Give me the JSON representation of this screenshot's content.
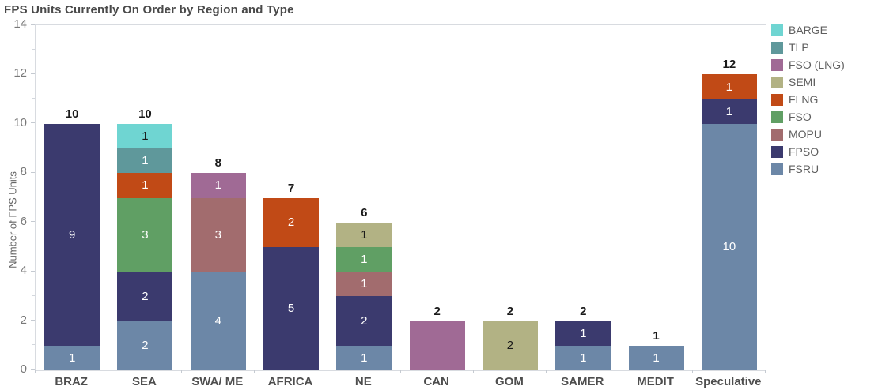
{
  "chart_data": {
    "type": "bar",
    "variant": "stacked-vertical",
    "title": "FPS Units Currently On Order by Region and Type",
    "xlabel": "",
    "ylabel": "Number of FPS Units",
    "ylim": [
      0,
      14
    ],
    "yticks_major": [
      0,
      2,
      4,
      6,
      8,
      10,
      12,
      14
    ],
    "yticks_minor": [
      1,
      3,
      5,
      7,
      9,
      11,
      13
    ],
    "grid": false,
    "legend_position": "right",
    "legend": [
      "BARGE",
      "TLP",
      "FSO (LNG)",
      "SEMI",
      "FLNG",
      "FSO",
      "MOPU",
      "FPSO",
      "FSRU"
    ],
    "colors": {
      "BARGE": "#6fd5d2",
      "TLP": "#5f989b",
      "FSO (LNG)": "#a06a95",
      "SEMI": "#b2b284",
      "FLNG": "#c14a16",
      "FSO": "#609f64",
      "MOPU": "#a26c6e",
      "FPSO": "#3b3a6e",
      "FSRU": "#6c87a7"
    },
    "label_colors": {
      "BARGE": "#1a1a1a",
      "TLP": "#ffffff",
      "FSO (LNG)": "#ffffff",
      "SEMI": "#1a1a1a",
      "FLNG": "#ffffff",
      "FSO": "#ffffff",
      "MOPU": "#ffffff",
      "FPSO": "#ffffff",
      "FSRU": "#ffffff"
    },
    "categories": [
      "BRAZ",
      "SEA",
      "SWA/ ME",
      "AFRICA",
      "NE",
      "CAN",
      "GOM",
      "SAMER",
      "MEDIT",
      "Speculative"
    ],
    "totals": [
      10,
      10,
      8,
      7,
      6,
      2,
      2,
      2,
      1,
      12
    ],
    "bars": [
      {
        "category": "BRAZ",
        "total": 10,
        "segments": [
          {
            "type": "FSRU",
            "value": 1,
            "show_label": true
          },
          {
            "type": "FPSO",
            "value": 9,
            "show_label": true
          }
        ]
      },
      {
        "category": "SEA",
        "total": 10,
        "segments": [
          {
            "type": "FSRU",
            "value": 2,
            "show_label": true
          },
          {
            "type": "FPSO",
            "value": 2,
            "show_label": true
          },
          {
            "type": "FSO",
            "value": 3,
            "show_label": true
          },
          {
            "type": "FLNG",
            "value": 1,
            "show_label": true
          },
          {
            "type": "TLP",
            "value": 1,
            "show_label": true
          },
          {
            "type": "BARGE",
            "value": 1,
            "show_label": true
          }
        ]
      },
      {
        "category": "SWA/ ME",
        "total": 8,
        "segments": [
          {
            "type": "FSRU",
            "value": 4,
            "show_label": true
          },
          {
            "type": "MOPU",
            "value": 3,
            "show_label": true
          },
          {
            "type": "FSO (LNG)",
            "value": 1,
            "show_label": true
          }
        ]
      },
      {
        "category": "AFRICA",
        "total": 7,
        "segments": [
          {
            "type": "FPSO",
            "value": 5,
            "show_label": true
          },
          {
            "type": "FLNG",
            "value": 2,
            "show_label": true
          }
        ]
      },
      {
        "category": "NE",
        "total": 6,
        "segments": [
          {
            "type": "FSRU",
            "value": 1,
            "show_label": true
          },
          {
            "type": "FPSO",
            "value": 2,
            "show_label": true
          },
          {
            "type": "MOPU",
            "value": 1,
            "show_label": true
          },
          {
            "type": "FSO",
            "value": 1,
            "show_label": true
          },
          {
            "type": "SEMI",
            "value": 1,
            "show_label": true
          }
        ]
      },
      {
        "category": "CAN",
        "total": 2,
        "segments": [
          {
            "type": "FSO (LNG)",
            "value": 2,
            "show_label": false
          }
        ]
      },
      {
        "category": "GOM",
        "total": 2,
        "segments": [
          {
            "type": "SEMI",
            "value": 2,
            "show_label": true
          }
        ]
      },
      {
        "category": "SAMER",
        "total": 2,
        "segments": [
          {
            "type": "FSRU",
            "value": 1,
            "show_label": true
          },
          {
            "type": "FPSO",
            "value": 1,
            "show_label": true
          }
        ]
      },
      {
        "category": "MEDIT",
        "total": 1,
        "segments": [
          {
            "type": "FSRU",
            "value": 1,
            "show_label": true
          }
        ]
      },
      {
        "category": "Speculative",
        "total": 12,
        "segments": [
          {
            "type": "FSRU",
            "value": 10,
            "show_label": true
          },
          {
            "type": "FPSO",
            "value": 1,
            "show_label": true
          },
          {
            "type": "FLNG",
            "value": 1,
            "show_label": true
          }
        ]
      }
    ]
  }
}
